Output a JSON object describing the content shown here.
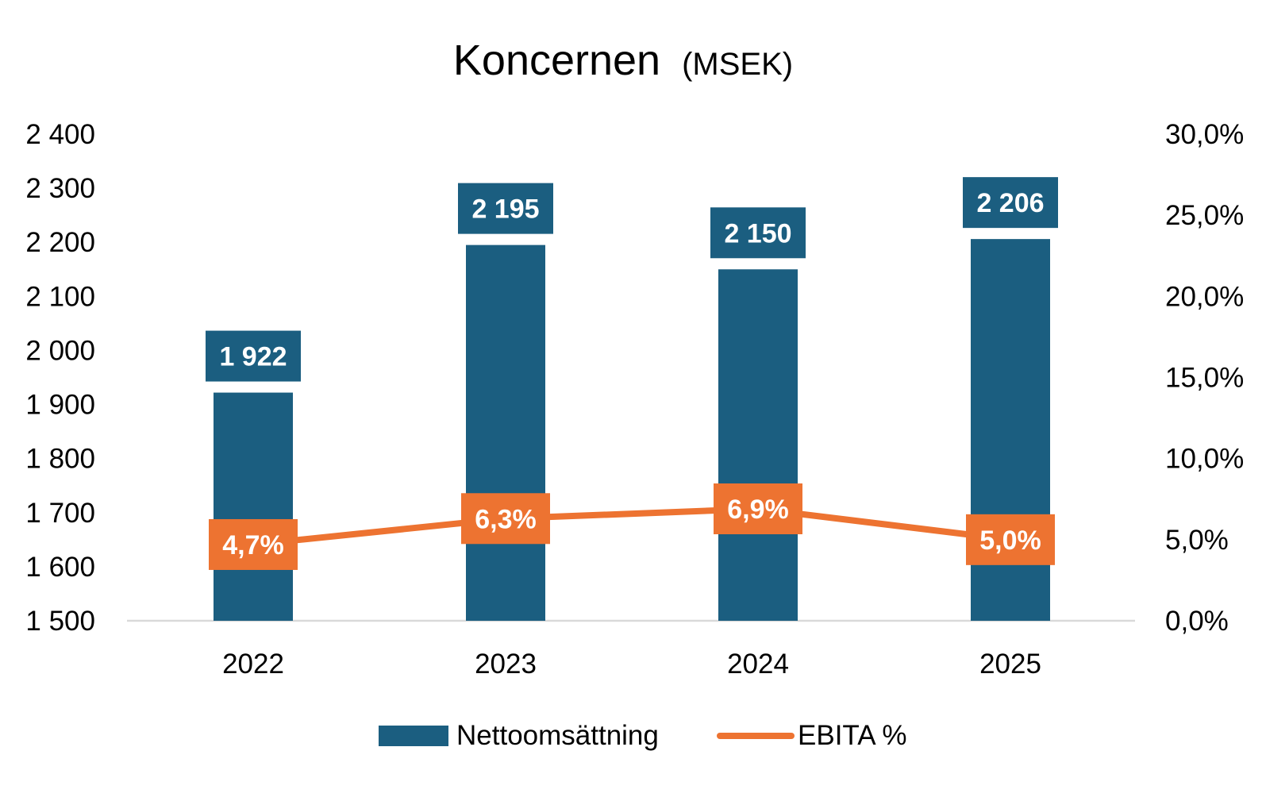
{
  "chart_data": {
    "type": "bar",
    "title": "Koncernen",
    "title_unit": "(MSEK)",
    "categories": [
      "2022",
      "2023",
      "2024",
      "2025"
    ],
    "series": [
      {
        "name": "Nettoomsättning",
        "kind": "bar",
        "axis": "left",
        "values": [
          1922,
          2195,
          2150,
          2206
        ],
        "labels": [
          "1 922",
          "2 195",
          "2 150",
          "2 206"
        ],
        "color": "#1b5e80"
      },
      {
        "name": "EBITA %",
        "kind": "line",
        "axis": "right",
        "values": [
          4.7,
          6.3,
          6.9,
          5.0
        ],
        "labels": [
          "4,7%",
          "6,3%",
          "6,9%",
          "5,0%"
        ],
        "color": "#ed7331"
      }
    ],
    "y_left": {
      "min": 1500,
      "max": 2400,
      "ticks": [
        1500,
        1600,
        1700,
        1800,
        1900,
        2000,
        2100,
        2200,
        2300,
        2400
      ],
      "tick_labels": [
        "1 500",
        "1 600",
        "1 700",
        "1 800",
        "1 900",
        "2 000",
        "2 100",
        "2 200",
        "2 300",
        "2 400"
      ]
    },
    "y_right": {
      "min": 0,
      "max": 30,
      "ticks": [
        0,
        5,
        10,
        15,
        20,
        25,
        30
      ],
      "tick_labels": [
        "0,0%",
        "5,0%",
        "10,0%",
        "15,0%",
        "20,0%",
        "25,0%",
        "30,0%"
      ]
    },
    "grid": false,
    "legend_position": "bottom"
  }
}
